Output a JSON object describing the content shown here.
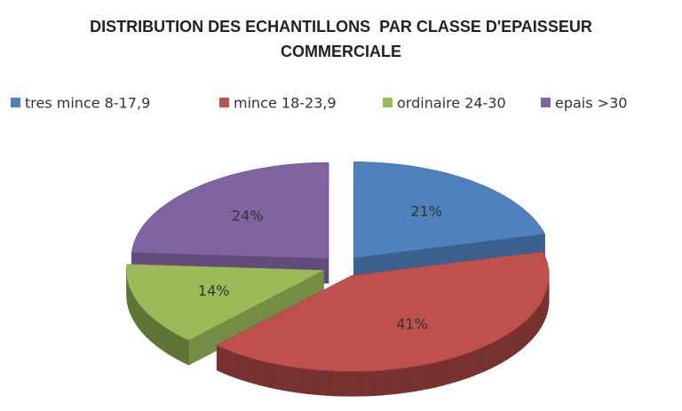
{
  "chart_data": {
    "type": "pie",
    "title": "DISTRIBUTION DES ECHANTILLONS  PAR CLASSE D'EPAISSEUR COMMERCIALE",
    "categories": [
      "tres mince 8-17,9",
      "mince 18-23,9",
      "ordinaire 24-30",
      "epais >30"
    ],
    "values": [
      21,
      41,
      14,
      24
    ],
    "value_labels": [
      "21%",
      "41%",
      "14%",
      "24%"
    ],
    "colors": [
      "#4f81bd",
      "#c0504d",
      "#9bbb59",
      "#8064a2"
    ],
    "legend": "top"
  }
}
